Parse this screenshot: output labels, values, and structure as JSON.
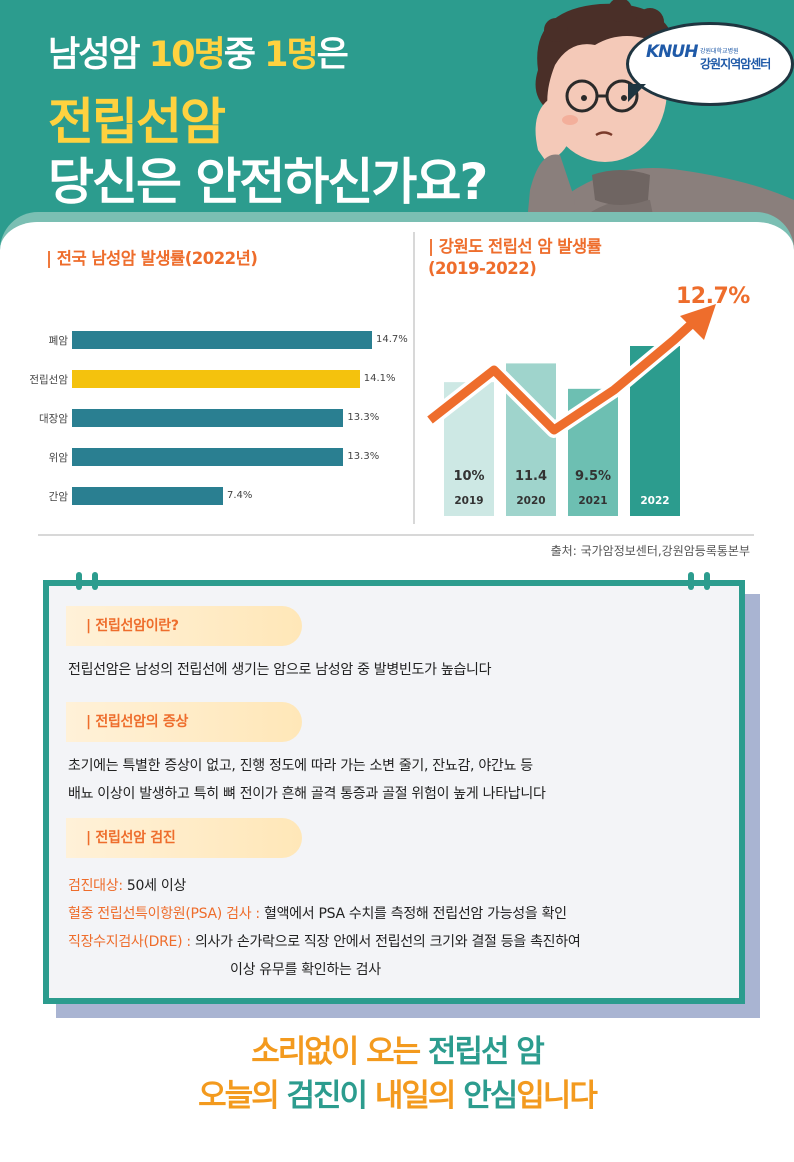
{
  "headline": {
    "line1_a": "남성암 ",
    "line1_b": "10명",
    "line1_c": "중 ",
    "line1_d": "1명",
    "line1_e": "은",
    "line2": "전립선암",
    "line3": "당신은 안전하신가요?"
  },
  "logo": {
    "mark": "KNUH",
    "small": "강원대학교병원",
    "name": "강원지역암센터"
  },
  "national_chart": {
    "title": "| 전국 남성암 발생률(2022년)",
    "chart_data": {
      "type": "bar",
      "orientation": "horizontal",
      "categories": [
        "폐암",
        "전립선암",
        "대장암",
        "위암",
        "간암"
      ],
      "values": [
        14.7,
        14.1,
        13.3,
        13.3,
        7.4
      ],
      "value_labels": [
        "14.7%",
        "14.1%",
        "13.3%",
        "13.3%",
        "7.4%"
      ],
      "highlight": "전립선암",
      "colors": {
        "default": "#2a7f91",
        "highlight": "#f4c20d"
      }
    }
  },
  "gangwon_chart": {
    "title_line1": "| 강원도 전립선 암 발생률",
    "title_line2": "(2019-2022)",
    "chart_data": {
      "type": "bar",
      "categories": [
        "2019",
        "2020",
        "2021",
        "2022"
      ],
      "values": [
        10,
        11.4,
        9.5,
        12.7
      ],
      "value_labels": [
        "10%",
        "11.4",
        "9.5%",
        "12.7%"
      ],
      "trend_arrow": true,
      "colors": [
        "#cde8e4",
        "#9fd4cc",
        "#6dbfb2",
        "#2c9c8e"
      ],
      "arrow_color": "#ee6d2c"
    }
  },
  "source": "출처: 국가암정보센터,강원암등록통본부",
  "board": {
    "sec1_title": "| 전립선암이란?",
    "sec1_body": "전립선암은 남성의 전립선에 생기는 암으로 남성암 중 발병빈도가 높습니다",
    "sec2_title": "| 전립선암의 증상",
    "sec2_body1": "초기에는 특별한 증상이 없고, 진행 정도에 따라 가는 소변 줄기, 잔뇨감, 야간뇨 등",
    "sec2_body2": "배뇨 이상이 발생하고 특히 뼈 전이가 흔해 골격 통증과 골절 위험이 높게 나타납니다",
    "sec3_title": "| 전립선암 검진",
    "target_label": "검진대상:",
    "target_value": " 50세 이상",
    "psa_label": "혈중 전립선특이항원(PSA) 검사 :",
    "psa_value": " 혈액에서 PSA 수치를 측정해 전립선암 가능성을 확인",
    "dre_label": "직장수지검사(DRE) :",
    "dre_value1": " 의사가 손가락으로 직장 안에서 전립선의 크기와 결절 등을 촉진하여",
    "dre_value2": "이상 유무를 확인하는 검사"
  },
  "slogan": {
    "l1_a": "소리없이 오는 ",
    "l1_b": "전립선 암",
    "l2_a": "오늘의 ",
    "l2_b": "검진이",
    "l2_c": " 내일의 ",
    "l2_d": "안심",
    "l2_e": "입니다"
  }
}
